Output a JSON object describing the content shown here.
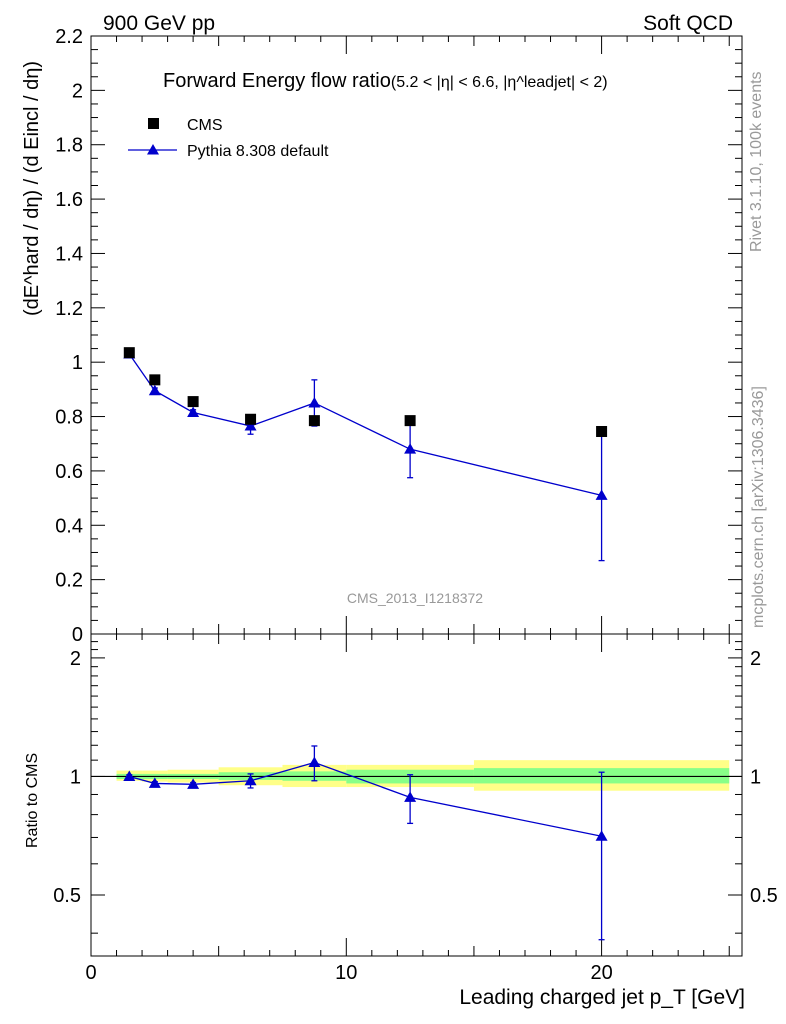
{
  "header": {
    "left": "900 GeV pp",
    "right": "Soft QCD"
  },
  "side_labels": {
    "rivet": "Rivet 3.1.10,  100k events",
    "mcplots": "mcplots.cern.ch [arXiv:1306.3436]"
  },
  "colors": {
    "data": "#000000",
    "mc": "#0000cc",
    "band_inner": "#88ff88",
    "band_outer": "#ffff88",
    "watermark": "#999999"
  },
  "chart_data": [
    {
      "type": "scatter",
      "panel": "main",
      "title": "Forward Energy flow ratio",
      "title_condition": "(5.2 < |η| < 6.6, |η^leadjet| < 2)",
      "watermark": "CMS_2013_I1218372",
      "ylabel": "(dE^hard / dη) / (d Eincl / dη)",
      "ylim": [
        0,
        2.2
      ],
      "xlim": [
        0,
        25.5
      ],
      "y_ticks": [
        "0",
        "0.2",
        "0.4",
        "0.6",
        "0.8",
        "1",
        "1.2",
        "1.4",
        "1.6",
        "1.8",
        "2",
        "2.2"
      ],
      "legend_position": "top-left",
      "series": [
        {
          "name": "CMS",
          "marker": "square",
          "x": [
            1.5,
            2.5,
            4.0,
            6.25,
            8.75,
            12.5,
            20.0
          ],
          "y": [
            1.035,
            0.935,
            0.855,
            0.79,
            0.785,
            0.785,
            0.745
          ]
        },
        {
          "name": "Pythia 8.308 default",
          "marker": "triangle",
          "x": [
            1.5,
            2.5,
            4.0,
            6.25,
            8.75,
            12.5,
            20.0
          ],
          "y": [
            1.03,
            0.895,
            0.815,
            0.765,
            0.85,
            0.68,
            0.51
          ],
          "yerr": [
            0.01,
            0.01,
            0.01,
            0.03,
            0.085,
            0.105,
            0.24
          ]
        }
      ]
    },
    {
      "type": "line",
      "panel": "ratio",
      "ylabel": "Ratio to CMS",
      "xlabel": "Leading charged jet p_T [GeV]",
      "xlim": [
        0,
        25.5
      ],
      "ylim": [
        0.35,
        2.3
      ],
      "y_scale": "log",
      "x_ticks": [
        "0",
        "10",
        "20"
      ],
      "y_ticks": [
        "0.5",
        "1",
        "2"
      ],
      "bands": [
        {
          "x0": 1,
          "x1": 2,
          "inner": [
            0.985,
            1.015
          ],
          "outer": [
            0.975,
            1.035
          ]
        },
        {
          "x0": 2,
          "x1": 3,
          "inner": [
            0.985,
            1.015
          ],
          "outer": [
            0.97,
            1.035
          ]
        },
        {
          "x0": 3,
          "x1": 5,
          "inner": [
            0.985,
            1.015
          ],
          "outer": [
            0.965,
            1.04
          ]
        },
        {
          "x0": 5,
          "x1": 7.5,
          "inner": [
            0.98,
            1.025
          ],
          "outer": [
            0.95,
            1.055
          ]
        },
        {
          "x0": 7.5,
          "x1": 10,
          "inner": [
            0.975,
            1.03
          ],
          "outer": [
            0.94,
            1.07
          ]
        },
        {
          "x0": 10,
          "x1": 15,
          "inner": [
            0.96,
            1.04
          ],
          "outer": [
            0.94,
            1.07
          ]
        },
        {
          "x0": 15,
          "x1": 25,
          "inner": [
            0.96,
            1.05
          ],
          "outer": [
            0.92,
            1.1
          ]
        }
      ],
      "series": [
        {
          "name": "Pythia 8.308 default",
          "x": [
            1.5,
            2.5,
            4.0,
            6.25,
            8.75,
            12.5,
            20.0
          ],
          "y": [
            1.0,
            0.96,
            0.955,
            0.975,
            1.085,
            0.885,
            0.705
          ],
          "yerr": [
            0.01,
            0.01,
            0.01,
            0.04,
            0.11,
            0.125,
            0.32
          ]
        }
      ]
    }
  ]
}
